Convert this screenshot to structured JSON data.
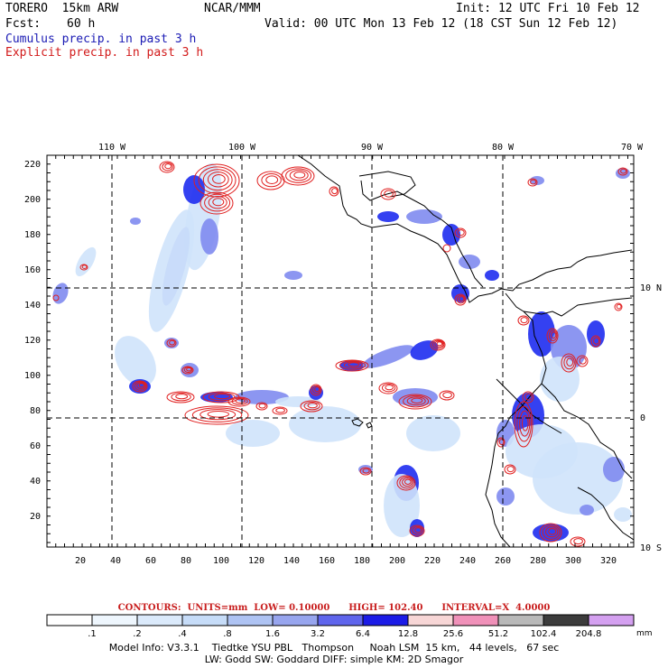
{
  "header": {
    "model": "TORERO  15km ARW",
    "center": "NCAR/MMM",
    "init": "Init: 12 UTC Fri 10 Feb 12",
    "fcst_label": "Fcst:",
    "fcst_value": "60 h",
    "valid": "Valid: 00 UTC Mon 13 Feb 12 (18 CST Sun 12 Feb 12)",
    "legend_cumulus": "Cumulus precip. in past 3 h",
    "legend_explicit": "Explicit precip. in past 3 h"
  },
  "map": {
    "lon_labels": [
      "110 W",
      "100 W",
      "90 W",
      "80 W",
      "70 W"
    ],
    "lat_labels": [
      "10 N",
      "0",
      "10 S"
    ],
    "y_ticks": [
      "220",
      "200",
      "180",
      "160",
      "140",
      "120",
      "100",
      "80",
      "60",
      "40",
      "20"
    ],
    "x_ticks": [
      "20",
      "40",
      "60",
      "80",
      "100",
      "120",
      "140",
      "160",
      "180",
      "200",
      "220",
      "240",
      "260",
      "280",
      "300",
      "320"
    ],
    "colors": {
      "coast": "#000000",
      "explicit_contour": "#e01e1e",
      "cumulus_light": "#cfe3fb",
      "cumulus_mid": "#7f8bf0",
      "cumulus_dark": "#1e2cf0"
    }
  },
  "contours_info": {
    "title": "CONTOURS:",
    "units": "UNITS=mm",
    "low": "LOW= 0.10000",
    "high": "HIGH= 102.40",
    "interval": "INTERVAL=X  4.0000"
  },
  "colorbar": {
    "units": "mm",
    "labels": [
      ".1",
      ".2",
      ".4",
      ".8",
      "1.6",
      "3.2",
      "6.4",
      "12.8",
      "25.6",
      "51.2",
      "102.4",
      "204.8"
    ],
    "colors": [
      "#ffffff",
      "#eef6fd",
      "#dbeafb",
      "#c6dcf8",
      "#aec3f3",
      "#97a5ee",
      "#5f65ec",
      "#1b1be6",
      "#f7d6d6",
      "#f091b9",
      "#b9b9b9",
      "#3c3c3c",
      "#d4a0f0"
    ]
  },
  "footer": {
    "line1": "Model Info: V3.3.1    Tiedtke YSU PBL   Thompson     Noah LSM  15 km,   44 levels,   67 sec",
    "line2": "LW: Godd SW: Goddard DIFF: simple KM: 2D Smagor"
  }
}
